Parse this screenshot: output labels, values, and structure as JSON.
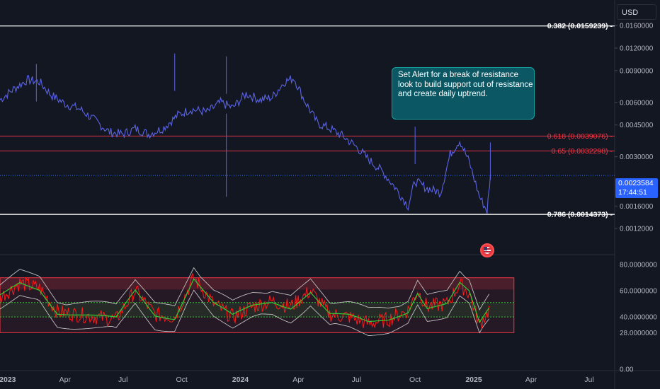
{
  "currency_selector": "USD",
  "callout": {
    "lines": [
      "Set Alert for a break of resistance",
      "look to build support out of resistance",
      "and create daily uptrend."
    ]
  },
  "current_price": {
    "value": "0.0023584",
    "countdown": "17:44:51"
  },
  "colors": {
    "background": "#131722",
    "price_line": "#5b63e6",
    "fib_white": "#ffffff",
    "fib_red": "#f23645",
    "rsi_line": "#ff1a1a",
    "rsi_ma": "#33cc33",
    "bands": "#bfbfbf",
    "callout_bg": "#0b5763",
    "price_tag": "#2962ff"
  },
  "chart_data": [
    {
      "type": "line",
      "scale": "log",
      "ylim": [
        0.0009,
        0.021
      ],
      "x_range": [
        "2022-12-20",
        "2025-08-10"
      ],
      "y_ticks": [
        "0.0160000",
        "0.0120000",
        "0.0090000",
        "0.0060000",
        "0.0045000",
        "0.0030000",
        "0.0016000",
        "0.0012000"
      ],
      "y_tick_values": [
        0.016,
        0.012,
        0.009,
        0.006,
        0.0045,
        0.003,
        0.0016,
        0.0012
      ],
      "levels": [
        {
          "label": "0.382 (0.0159239)",
          "value": 0.0159239,
          "color": "#ffffff"
        },
        {
          "label": "0.618 (0.0039076)",
          "value": 0.0039076,
          "color": "#f23645"
        },
        {
          "label": "0.65 (0.0032298)",
          "value": 0.0032298,
          "color": "#f23645"
        },
        {
          "label": "0.786 (0.0014373)",
          "value": 0.0014373,
          "color": "#ffffff"
        }
      ],
      "series": [
        {
          "x": [
            "2022-12-20",
            "2023-01-10",
            "2023-02-01",
            "2023-02-20",
            "2023-03-10",
            "2023-04-01",
            "2023-04-25",
            "2023-05-20",
            "2023-06-10",
            "2023-07-01",
            "2023-07-20",
            "2023-08-10",
            "2023-09-01",
            "2023-09-25",
            "2023-10-15",
            "2023-11-10",
            "2023-12-01",
            "2023-12-20",
            "2024-01-10",
            "2024-02-01",
            "2024-02-20",
            "2024-03-10",
            "2024-03-25",
            "2024-04-10",
            "2024-05-01",
            "2024-05-20",
            "2024-06-10",
            "2024-07-01",
            "2024-07-20",
            "2024-08-10",
            "2024-09-01",
            "2024-09-20",
            "2024-10-01",
            "2024-10-20",
            "2024-11-10",
            "2024-11-25",
            "2024-12-10",
            "2024-12-25",
            "2025-01-10",
            "2025-01-22",
            "2025-01-27"
          ],
          "y": [
            0.0062,
            0.0071,
            0.008,
            0.0078,
            0.0066,
            0.0059,
            0.0055,
            0.0047,
            0.0041,
            0.004,
            0.0043,
            0.004,
            0.0043,
            0.0051,
            0.0055,
            0.0053,
            0.006,
            0.0056,
            0.0067,
            0.0062,
            0.0064,
            0.0078,
            0.0082,
            0.0062,
            0.0046,
            0.0043,
            0.0039,
            0.0034,
            0.0029,
            0.0025,
            0.002,
            0.0016,
            0.0022,
            0.002,
            0.0019,
            0.0031,
            0.0037,
            0.0028,
            0.0018,
            0.0015,
            0.0023584
          ]
        }
      ],
      "current_value": 0.0023584
    },
    {
      "type": "line",
      "ylim": [
        0,
        85
      ],
      "y_ticks": [
        "80.0000000",
        "60.0000000",
        "40.0000000",
        "28.0000000",
        "0.00"
      ],
      "y_tick_values": [
        80,
        60,
        40,
        28,
        0
      ],
      "levels": [
        {
          "value": 70,
          "color": "#f23645"
        },
        {
          "value": 51,
          "color": "#33cc33"
        },
        {
          "value": 40,
          "color": "#33cc33"
        },
        {
          "value": 28,
          "color": "#f23645"
        }
      ],
      "series": [
        {
          "x": [
            "2022-12-20",
            "2023-01-20",
            "2023-02-20",
            "2023-03-20",
            "2023-04-20",
            "2023-05-20",
            "2023-06-20",
            "2023-07-20",
            "2023-08-20",
            "2023-09-20",
            "2023-10-20",
            "2023-11-20",
            "2023-12-20",
            "2024-01-20",
            "2024-02-20",
            "2024-03-20",
            "2024-04-20",
            "2024-05-20",
            "2024-06-20",
            "2024-07-20",
            "2024-08-20",
            "2024-09-20",
            "2024-10-05",
            "2024-10-20",
            "2024-11-20",
            "2024-12-10",
            "2024-12-25",
            "2025-01-10",
            "2025-01-27"
          ],
          "y": [
            55,
            66,
            62,
            44,
            42,
            40,
            38,
            60,
            42,
            40,
            70,
            50,
            40,
            48,
            52,
            48,
            60,
            42,
            40,
            35,
            38,
            45,
            60,
            48,
            50,
            65,
            58,
            34,
            47
          ]
        }
      ]
    }
  ],
  "x_axis_labels": [
    "2023",
    "Apr",
    "Jul",
    "Oct",
    "2024",
    "Apr",
    "Jul",
    "Oct",
    "2025",
    "Apr",
    "Jul"
  ],
  "x_axis_dates": [
    "2023-01-01",
    "2023-04-01",
    "2023-07-01",
    "2023-10-01",
    "2024-01-01",
    "2024-04-01",
    "2024-07-01",
    "2024-10-01",
    "2025-01-01",
    "2025-04-01",
    "2025-07-01"
  ]
}
